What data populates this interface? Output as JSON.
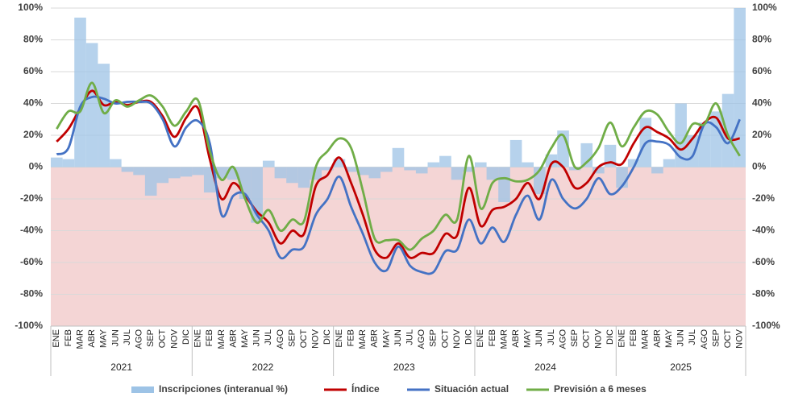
{
  "chart_data": {
    "type": "bar-line",
    "category_groups": [
      {
        "label": "2021",
        "categories": [
          "ENE",
          "FEB",
          "MAR",
          "ABR",
          "MAY",
          "JUN",
          "JUL",
          "AGO",
          "SEP",
          "OCT",
          "NOV",
          "DIC"
        ]
      },
      {
        "label": "2022",
        "categories": [
          "ENE",
          "FEB",
          "MAR",
          "ABR",
          "MAY",
          "JUN",
          "JUL",
          "AGO",
          "SEP",
          "OCT",
          "NOV",
          "DIC"
        ]
      },
      {
        "label": "2023",
        "categories": [
          "ENE",
          "FEB",
          "MAR",
          "ABR",
          "MAY",
          "JUN",
          "JUL",
          "AGO",
          "SEP",
          "OCT",
          "NOV",
          "DIC"
        ]
      },
      {
        "label": "2024",
        "categories": [
          "ENE",
          "FEB",
          "MAR",
          "ABR",
          "MAY",
          "JUN",
          "JUL",
          "AGO",
          "SEP",
          "OCT",
          "NOV",
          "DIC"
        ]
      },
      {
        "label": "2025",
        "categories": [
          "ENE",
          "FEB",
          "MAR",
          "ABR",
          "MAY",
          "JUN",
          "JUL",
          "AGO",
          "SEP",
          "OCT",
          "NOV"
        ]
      }
    ],
    "series": [
      {
        "name": "Inscripciones (interanual %)",
        "kind": "bar",
        "color": "#9dc3e6",
        "values": [
          6,
          5,
          94,
          78,
          65,
          5,
          -3,
          -5,
          -18,
          -10,
          -7,
          -6,
          -5,
          -16,
          -7,
          -8,
          -20,
          -35,
          4,
          -7,
          -10,
          -13,
          -8,
          -2,
          5,
          -3,
          -5,
          -7,
          -3,
          12,
          -2,
          -4,
          3,
          7,
          -8,
          -3,
          3,
          -8,
          -22,
          17,
          3,
          -17,
          8,
          23,
          -2,
          15,
          -4,
          14,
          -13,
          5,
          31,
          -4,
          5,
          40,
          20,
          28,
          35,
          46,
          100
        ]
      },
      {
        "name": "Índice",
        "kind": "line",
        "color": "#c00000",
        "values": [
          16,
          24,
          37,
          48,
          39,
          41,
          39,
          41,
          41,
          32,
          19,
          31,
          37,
          5,
          -20,
          -10,
          -18,
          -28,
          -35,
          -48,
          -40,
          -42,
          -12,
          -5,
          6,
          -10,
          -30,
          -52,
          -57,
          -48,
          -57,
          -54,
          -54,
          -42,
          -43,
          -13,
          -37,
          -27,
          -25,
          -20,
          -10,
          -20,
          2,
          0,
          -13,
          -10,
          0,
          3,
          2,
          15,
          25,
          22,
          18,
          11,
          18,
          28,
          31,
          18,
          18
        ]
      },
      {
        "name": "Situación actual",
        "kind": "line",
        "color": "#4472c4",
        "values": [
          8,
          12,
          38,
          44,
          43,
          40,
          41,
          41,
          40,
          30,
          13,
          25,
          29,
          15,
          -30,
          -18,
          -17,
          -30,
          -40,
          -57,
          -52,
          -50,
          -30,
          -20,
          -6,
          -25,
          -42,
          -60,
          -65,
          -50,
          -62,
          -66,
          -66,
          -53,
          -52,
          -33,
          -48,
          -38,
          -47,
          -30,
          -18,
          -33,
          -8,
          -20,
          -26,
          -20,
          -7,
          -17,
          -12,
          0,
          15,
          16,
          14,
          6,
          7,
          27,
          25,
          15,
          30
        ]
      },
      {
        "name": "Previsión a 6 meses",
        "kind": "line",
        "color": "#70ad47",
        "values": [
          24,
          35,
          35,
          53,
          34,
          42,
          38,
          42,
          45,
          38,
          26,
          35,
          42,
          10,
          -8,
          0,
          -20,
          -35,
          -27,
          -40,
          -33,
          -34,
          0,
          10,
          18,
          12,
          -15,
          -45,
          -46,
          -46,
          -52,
          -45,
          -40,
          -30,
          -33,
          7,
          -26,
          -10,
          -7,
          -9,
          -8,
          -2,
          12,
          20,
          0,
          3,
          12,
          28,
          13,
          25,
          35,
          33,
          22,
          15,
          27,
          27,
          40,
          20,
          7
        ]
      }
    ],
    "ylim": [
      -100,
      100
    ],
    "yticks": [
      {
        "value": -100,
        "label": "-100%"
      },
      {
        "value": -80,
        "label": "-80%"
      },
      {
        "value": -60,
        "label": "-60%"
      },
      {
        "value": -40,
        "label": "-40%"
      },
      {
        "value": -20,
        "label": "-20%"
      },
      {
        "value": 0,
        "label": "0%"
      },
      {
        "value": 20,
        "label": "20%"
      },
      {
        "value": 40,
        "label": "40%"
      },
      {
        "value": 60,
        "label": "60%"
      },
      {
        "value": 80,
        "label": "80%"
      },
      {
        "value": 100,
        "label": "100%"
      }
    ],
    "grid": true,
    "negative_background": "#f4d5d5"
  }
}
